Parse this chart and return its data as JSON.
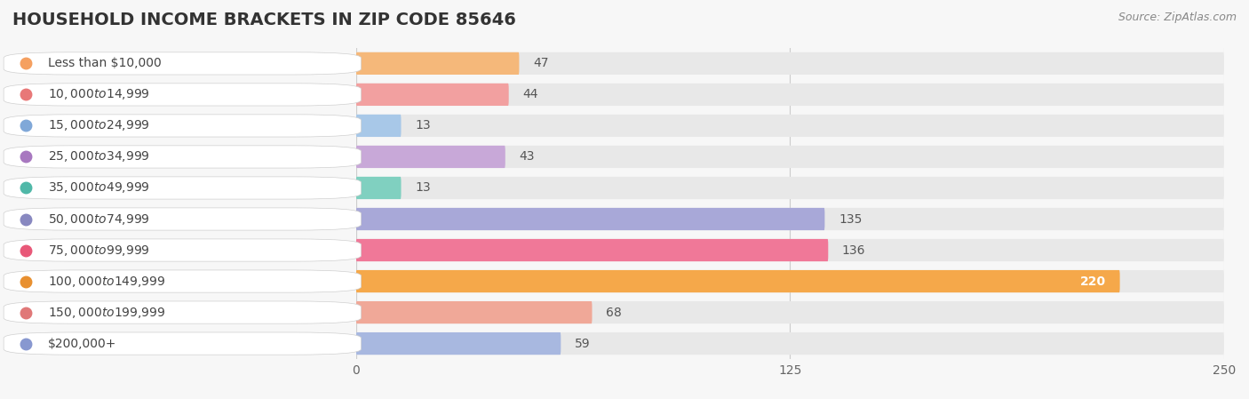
{
  "title": "HOUSEHOLD INCOME BRACKETS IN ZIP CODE 85646",
  "source": "Source: ZipAtlas.com",
  "categories": [
    "Less than $10,000",
    "$10,000 to $14,999",
    "$15,000 to $24,999",
    "$25,000 to $34,999",
    "$35,000 to $49,999",
    "$50,000 to $74,999",
    "$75,000 to $99,999",
    "$100,000 to $149,999",
    "$150,000 to $199,999",
    "$200,000+"
  ],
  "values": [
    47,
    44,
    13,
    43,
    13,
    135,
    136,
    220,
    68,
    59
  ],
  "bar_colors": [
    "#F5B87A",
    "#F2A0A0",
    "#A8C8E8",
    "#C8A8D8",
    "#80D0C0",
    "#A8A8D8",
    "#F07898",
    "#F5A84A",
    "#F0A898",
    "#A8B8E0"
  ],
  "dot_colors": [
    "#F5A060",
    "#E87878",
    "#80A8D8",
    "#A878C0",
    "#50B8A8",
    "#8888C0",
    "#E85878",
    "#E89030",
    "#E07878",
    "#8898D0"
  ],
  "xlim": [
    0,
    250
  ],
  "xticks": [
    0,
    125,
    250
  ],
  "bg_color": "#f7f7f7",
  "bar_bg_color": "#e8e8e8",
  "row_bg_color": "#f0f0f0",
  "title_fontsize": 14,
  "label_fontsize": 10,
  "value_fontsize": 10
}
